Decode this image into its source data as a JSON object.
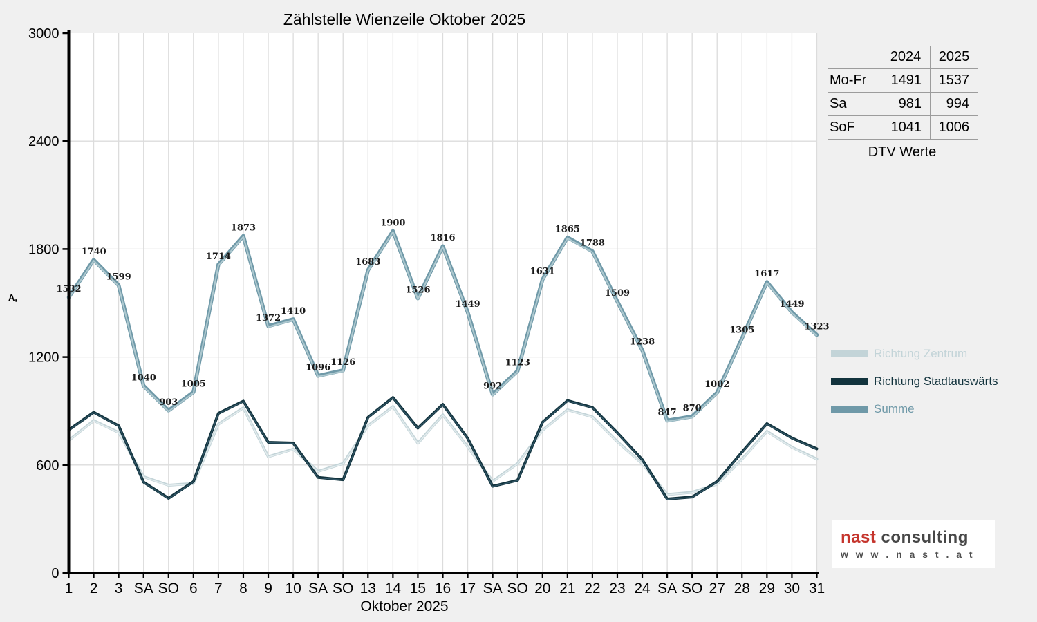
{
  "title": "Zählstelle Wienzeile Oktober 2025",
  "chart_data": {
    "type": "line",
    "title": "Zählstelle Wienzeile Oktober 2025",
    "xlabel": "Oktober 2025",
    "ylabel_glyph": "A,",
    "ylim": [
      0,
      3000
    ],
    "yticks": [
      0,
      600,
      1200,
      1800,
      2400,
      3000
    ],
    "grid": true,
    "legend_position": "right",
    "categories": [
      "1",
      "2",
      "3",
      "SA",
      "SO",
      "6",
      "7",
      "8",
      "9",
      "10",
      "SA",
      "SO",
      "13",
      "14",
      "15",
      "16",
      "17",
      "SA",
      "SO",
      "20",
      "21",
      "22",
      "23",
      "24",
      "SA",
      "SO",
      "27",
      "28",
      "29",
      "30",
      "31"
    ],
    "sunday_label": "SO",
    "sunday_color": "#ee0000",
    "series": [
      {
        "name": "Richtung Zentrum",
        "color": "#c3d4d8",
        "highlight": "#e3ecee",
        "width": 4,
        "highlight_width": 1.6,
        "highlight_offset": 0.5,
        "show_labels": false,
        "values": [
          737,
          847,
          781,
          535,
          488,
          497,
          827,
          918,
          646,
          688,
          565,
          608,
          818,
          925,
          721,
          879,
          701,
          510,
          608,
          793,
          907,
          868,
          730,
          608,
          436,
          448,
          494,
          633,
          787,
          699,
          633
        ]
      },
      {
        "name": "Richtung Stadtauswärts",
        "color": "#12333d",
        "highlight": "#34596a",
        "width": 4,
        "highlight_width": 1.3,
        "highlight_offset": 0.5,
        "show_labels": false,
        "values": [
          795,
          893,
          818,
          505,
          415,
          508,
          887,
          955,
          726,
          722,
          531,
          518,
          865,
          975,
          805,
          937,
          748,
          482,
          515,
          838,
          958,
          920,
          779,
          630,
          411,
          422,
          508,
          672,
          830,
          750,
          690
        ]
      },
      {
        "name": "Summe",
        "color": "#6f99a8",
        "highlight": "#adc8cf",
        "width": 5.5,
        "highlight_width": 2.2,
        "highlight_offset": 1.3,
        "show_labels": true,
        "values": [
          1532,
          1740,
          1599,
          1040,
          903,
          1005,
          1714,
          1873,
          1372,
          1410,
          1096,
          1126,
          1683,
          1900,
          1526,
          1816,
          1449,
          992,
          1123,
          1631,
          1865,
          1788,
          1509,
          1238,
          847,
          870,
          1002,
          1305,
          1617,
          1449,
          1323
        ]
      }
    ]
  },
  "dtv_table": {
    "col_2024": "2024",
    "col_2025": "2025",
    "caption": "DTV Werte",
    "rows": [
      {
        "label": "Mo-Fr",
        "y2024": "1491",
        "y2025": "1537"
      },
      {
        "label": "Sa",
        "y2024": "981",
        "y2025": "994"
      },
      {
        "label": "SoF",
        "y2024": "1041",
        "y2025": "1006"
      }
    ]
  },
  "logo": {
    "brand_red": "nast",
    "brand_gray": " consulting",
    "url_text": "w w w . n a s t . a t"
  }
}
